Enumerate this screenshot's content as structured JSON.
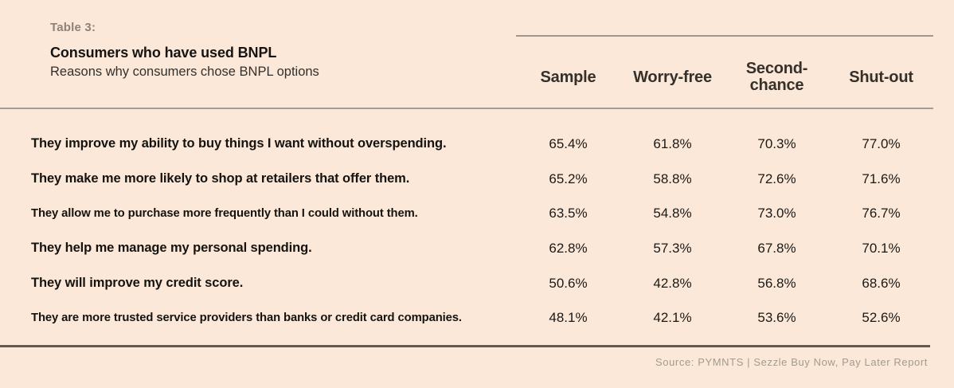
{
  "header": {
    "eyebrow": "Table 3:",
    "title": "Consumers who have used BNPL",
    "subtitle": "Reasons why consumers chose BNPL options"
  },
  "table": {
    "columns": [
      "Sample",
      "Worry-free",
      "Second-chance",
      "Shut-out"
    ],
    "rows": [
      {
        "label": "They improve my ability to buy things I want without overspending.",
        "values": [
          "65.4%",
          "61.8%",
          "70.3%",
          "77.0%"
        ]
      },
      {
        "label": "They make me more likely to shop at retailers that offer them.",
        "values": [
          "65.2%",
          "58.8%",
          "72.6%",
          "71.6%"
        ]
      },
      {
        "label": "They allow me to purchase more frequently than I could without them.",
        "values": [
          "63.5%",
          "54.8%",
          "73.0%",
          "76.7%"
        ]
      },
      {
        "label": "They help me manage my personal spending.",
        "values": [
          "62.8%",
          "57.3%",
          "67.8%",
          "70.1%"
        ]
      },
      {
        "label": "They will improve my credit score.",
        "values": [
          "50.6%",
          "42.8%",
          "56.8%",
          "68.6%"
        ]
      },
      {
        "label": "They are more trusted service providers than banks or credit card companies.",
        "values": [
          "48.1%",
          "42.1%",
          "53.6%",
          "52.6%"
        ]
      }
    ]
  },
  "footer": {
    "source": "Source: PYMNTS | Sezzle Buy Now, Pay Later Report"
  },
  "colors": {
    "background": "#fce8d8",
    "eyebrow_text": "#8d8278",
    "body_text": "#15130f",
    "light_rule": "#a59e94",
    "dark_rule": "#625a50",
    "source_text": "#a39a8e"
  },
  "chart_data": {
    "type": "table",
    "title": "Consumers who have used BNPL",
    "subtitle": "Reasons why consumers chose BNPL options",
    "table_number": "Table 3:",
    "columns": [
      "Sample",
      "Worry-free",
      "Second-chance",
      "Shut-out"
    ],
    "rows": [
      {
        "label": "They improve my ability to buy things I want without overspending.",
        "values_pct": [
          65.4,
          61.8,
          70.3,
          77.0
        ]
      },
      {
        "label": "They make me more likely to shop at retailers that offer them.",
        "values_pct": [
          65.2,
          58.8,
          72.6,
          71.6
        ]
      },
      {
        "label": "They allow me to purchase more frequently than I could without them.",
        "values_pct": [
          63.5,
          54.8,
          73.0,
          76.7
        ]
      },
      {
        "label": "They help me manage my personal spending.",
        "values_pct": [
          62.8,
          57.3,
          67.8,
          70.1
        ]
      },
      {
        "label": "They will improve my credit score.",
        "values_pct": [
          50.6,
          42.8,
          56.8,
          68.6
        ]
      },
      {
        "label": "They are more trusted service providers than banks or credit card companies.",
        "values_pct": [
          48.1,
          42.1,
          53.6,
          52.6
        ]
      }
    ],
    "unit": "%",
    "source": "Source: PYMNTS | Sezzle Buy Now, Pay Later Report"
  }
}
